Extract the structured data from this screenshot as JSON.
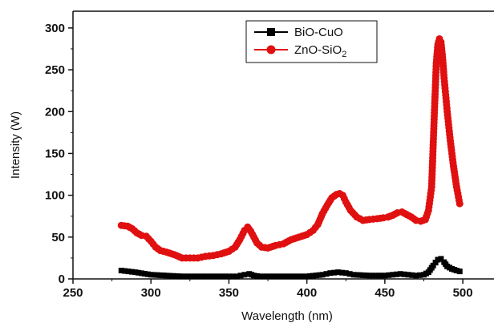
{
  "chart_data": {
    "type": "line",
    "title": "",
    "xlabel": "Wavelength (nm)",
    "ylabel": "Intensity (W)",
    "xlim": [
      250,
      520
    ],
    "ylim": [
      0,
      320
    ],
    "x_ticks": [
      250,
      300,
      350,
      400,
      450,
      500
    ],
    "y_ticks": [
      0,
      50,
      100,
      150,
      200,
      250,
      300
    ],
    "grid": false,
    "legend_position": "top-center",
    "series": [
      {
        "name": "BiO-CuO",
        "legend_label": "BiO-CuO",
        "color": "#000000",
        "marker": "square",
        "points": [
          [
            281,
            10
          ],
          [
            290,
            8
          ],
          [
            300,
            5
          ],
          [
            310,
            4
          ],
          [
            320,
            3
          ],
          [
            330,
            3
          ],
          [
            340,
            3
          ],
          [
            350,
            3
          ],
          [
            355,
            3
          ],
          [
            360,
            5
          ],
          [
            363,
            6
          ],
          [
            366,
            4
          ],
          [
            370,
            3
          ],
          [
            380,
            3
          ],
          [
            390,
            3
          ],
          [
            400,
            3
          ],
          [
            410,
            5
          ],
          [
            415,
            7
          ],
          [
            420,
            8
          ],
          [
            425,
            7
          ],
          [
            430,
            5
          ],
          [
            440,
            4
          ],
          [
            450,
            4
          ],
          [
            455,
            5
          ],
          [
            460,
            6
          ],
          [
            465,
            5
          ],
          [
            470,
            4
          ],
          [
            475,
            5
          ],
          [
            478,
            8
          ],
          [
            481,
            16
          ],
          [
            484,
            23
          ],
          [
            486,
            24
          ],
          [
            488,
            20
          ],
          [
            490,
            15
          ],
          [
            493,
            12
          ],
          [
            496,
            10
          ],
          [
            498,
            9
          ]
        ]
      },
      {
        "name": "ZnO-SiO2",
        "legend_label_main": "ZnO-SiO",
        "legend_label_sub": "2",
        "color": "#e01010",
        "marker": "circle",
        "points": [
          [
            281,
            64
          ],
          [
            285,
            63
          ],
          [
            288,
            60
          ],
          [
            291,
            55
          ],
          [
            294,
            52
          ],
          [
            297,
            51
          ],
          [
            300,
            45
          ],
          [
            303,
            38
          ],
          [
            306,
            34
          ],
          [
            310,
            32
          ],
          [
            315,
            29
          ],
          [
            320,
            25
          ],
          [
            325,
            25
          ],
          [
            330,
            25
          ],
          [
            335,
            27
          ],
          [
            340,
            28
          ],
          [
            345,
            30
          ],
          [
            350,
            33
          ],
          [
            354,
            38
          ],
          [
            357,
            47
          ],
          [
            360,
            58
          ],
          [
            362,
            62
          ],
          [
            364,
            57
          ],
          [
            366,
            50
          ],
          [
            368,
            43
          ],
          [
            371,
            38
          ],
          [
            375,
            37
          ],
          [
            380,
            40
          ],
          [
            385,
            42
          ],
          [
            390,
            47
          ],
          [
            395,
            50
          ],
          [
            400,
            53
          ],
          [
            404,
            58
          ],
          [
            407,
            65
          ],
          [
            410,
            78
          ],
          [
            413,
            88
          ],
          [
            416,
            97
          ],
          [
            419,
            101
          ],
          [
            421,
            102
          ],
          [
            423,
            100
          ],
          [
            425,
            92
          ],
          [
            428,
            82
          ],
          [
            432,
            74
          ],
          [
            436,
            70
          ],
          [
            440,
            71
          ],
          [
            445,
            72
          ],
          [
            449,
            73
          ],
          [
            452,
            74
          ],
          [
            455,
            76
          ],
          [
            458,
            79
          ],
          [
            461,
            80
          ],
          [
            464,
            77
          ],
          [
            467,
            74
          ],
          [
            470,
            70
          ],
          [
            473,
            69
          ],
          [
            476,
            71
          ],
          [
            478,
            82
          ],
          [
            480,
            110
          ],
          [
            481,
            160
          ],
          [
            482,
            210
          ],
          [
            483,
            258
          ],
          [
            484,
            280
          ],
          [
            485,
            287
          ],
          [
            486,
            283
          ],
          [
            487,
            265
          ],
          [
            488,
            240
          ],
          [
            490,
            200
          ],
          [
            492,
            165
          ],
          [
            494,
            135
          ],
          [
            496,
            110
          ],
          [
            498,
            90
          ]
        ]
      }
    ]
  }
}
